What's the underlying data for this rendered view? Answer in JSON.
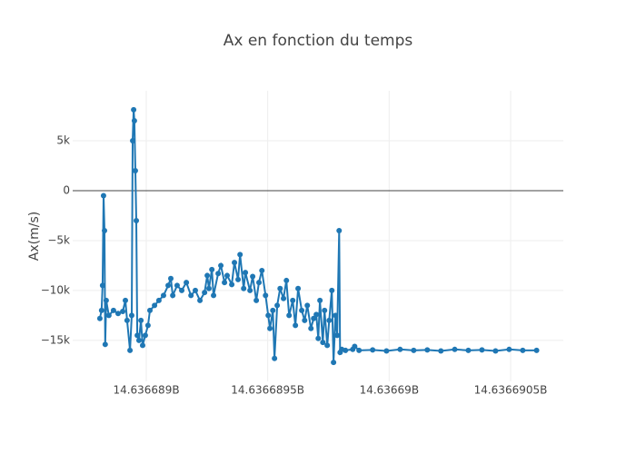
{
  "chart_data": {
    "type": "line",
    "title": "Ax en fonction du temps",
    "y_label": "Ax(m/s)",
    "xlim": [
      14636688697,
      14636690717
    ],
    "ylim": [
      -19100,
      10000
    ],
    "xticks": [
      {
        "value": 14636689000,
        "label": "14.636689B"
      },
      {
        "value": 14636689500,
        "label": "14.6366895B"
      },
      {
        "value": 14636690000,
        "label": "14.63669B"
      },
      {
        "value": 14636690500,
        "label": "14.6366905B"
      }
    ],
    "yticks": [
      {
        "value": -15000,
        "label": "−15k"
      },
      {
        "value": -10000,
        "label": "−10k"
      },
      {
        "value": -5000,
        "label": "−5k"
      },
      0,
      {
        "value": 5000,
        "label": "5k"
      }
    ],
    "grid": true,
    "series": [
      {
        "color": "#1f77b4",
        "x": [
          14636688809,
          14636688816,
          14636688820,
          14636688824,
          14636688828,
          14636688831,
          14636688835,
          14636688846,
          14636688865,
          14636688884,
          14636688903,
          14636688914,
          14636688921,
          14636688933,
          14636688940,
          14636688944,
          14636688948,
          14636688951,
          14636688955,
          14636688959,
          14636688963,
          14636688970,
          14636688978,
          14636688985,
          14636688996,
          14636689007,
          14636689015,
          14636689034,
          14636689052,
          14636689071,
          14636689090,
          14636689101,
          14636689109,
          14636689127,
          14636689146,
          14636689165,
          14636689184,
          14636689202,
          14636689221,
          14636689240,
          14636689251,
          14636689258,
          14636689270,
          14636689277,
          14636689296,
          14636689307,
          14636689322,
          14636689333,
          14636689352,
          14636689363,
          14636689378,
          14636689386,
          14636689401,
          14636689408,
          14636689427,
          14636689438,
          14636689453,
          14636689464,
          14636689476,
          14636689491,
          14636689502,
          14636689509,
          14636689521,
          14636689528,
          14636689539,
          14636689551,
          14636689565,
          14636689577,
          14636689588,
          14636689603,
          14636689614,
          14636689625,
          14636689640,
          14636689652,
          14636689663,
          14636689678,
          14636689689,
          14636689700,
          14636689708,
          14636689715,
          14636689727,
          14636689734,
          14636689745,
          14636689753,
          14636689764,
          14636689771,
          14636689779,
          14636689786,
          14636689794,
          14636689798,
          14636689805,
          14636689820,
          14636689850,
          14636689858,
          14636689876,
          14636689932,
          14636689989,
          14636690045,
          14636690101,
          14636690157,
          14636690213,
          14636690270,
          14636690326,
          14636690382,
          14636690438,
          14636690494,
          14636690550,
          14636690607
        ],
        "values": [
          -12800,
          -12000,
          -9500,
          -500,
          -4000,
          -15400,
          -11000,
          -12500,
          -12000,
          -12300,
          -12100,
          -11000,
          -13000,
          -16000,
          -12500,
          5000,
          8100,
          7000,
          2000,
          -3000,
          -14500,
          -15000,
          -13000,
          -15500,
          -14500,
          -13500,
          -12000,
          -11500,
          -11000,
          -10500,
          -9500,
          -8800,
          -10500,
          -9500,
          -10000,
          -9200,
          -10500,
          -10000,
          -11000,
          -10200,
          -8500,
          -9800,
          -7900,
          -10500,
          -8300,
          -7500,
          -9200,
          -8500,
          -9400,
          -7200,
          -8900,
          -6400,
          -9800,
          -8200,
          -10000,
          -8600,
          -11000,
          -9200,
          -8000,
          -10500,
          -12500,
          -13800,
          -12000,
          -16800,
          -11500,
          -9800,
          -10800,
          -9000,
          -12500,
          -11000,
          -13500,
          -9800,
          -12000,
          -13000,
          -11500,
          -13800,
          -12800,
          -12400,
          -14800,
          -11000,
          -15200,
          -12000,
          -15500,
          -13000,
          -10000,
          -17200,
          -12500,
          -14500,
          -4000,
          -16200,
          -15900,
          -16000,
          -15900,
          -15600,
          -16000,
          -15950,
          -16050,
          -15900,
          -16000,
          -15950,
          -16050,
          -15900,
          -16000,
          -15950,
          -16050,
          -15900,
          -16000,
          -16000
        ]
      }
    ]
  }
}
